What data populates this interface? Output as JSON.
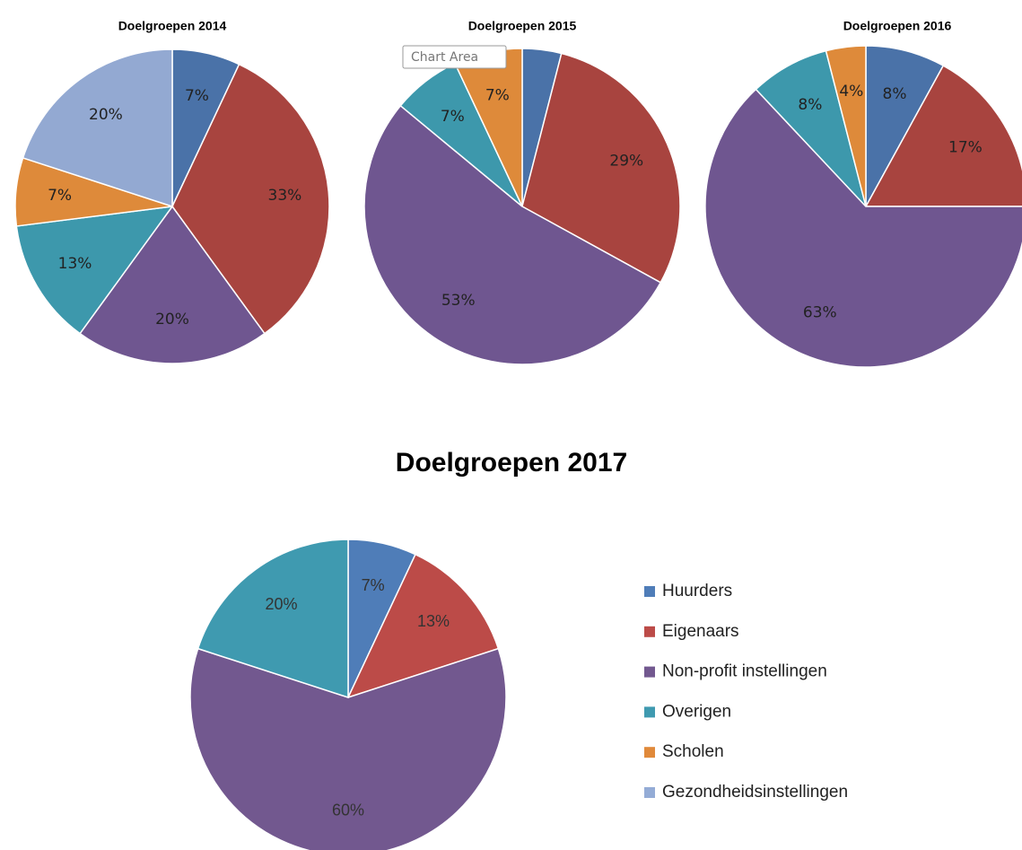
{
  "chart_data": [
    {
      "type": "pie",
      "title": "Doelgroepen 2014",
      "values": [
        7,
        33,
        20,
        13,
        7,
        20
      ],
      "value_labels": [
        "7%",
        "33%",
        "20%",
        "13%",
        "7%",
        "20%"
      ],
      "colors": [
        "#4a72a8",
        "#a8443f",
        "#6f5690",
        "#3d98ac",
        "#de8a3a",
        "#93a9d2"
      ]
    },
    {
      "type": "pie",
      "title": "Doelgroepen 2015",
      "values": [
        4,
        29,
        53,
        7,
        7
      ],
      "value_labels": [
        null,
        "29%",
        "53%",
        "7%",
        "7%"
      ],
      "colors": [
        "#4a72a8",
        "#a8443f",
        "#6f5690",
        "#3d98ac",
        "#de8a3a"
      ],
      "tooltip": "Chart Area"
    },
    {
      "type": "pie",
      "title": "Doelgroepen 2016",
      "values": [
        8,
        17,
        63,
        8,
        4
      ],
      "value_labels": [
        "8%",
        "17%",
        "63%",
        "8%",
        "4%"
      ],
      "colors": [
        "#4a72a8",
        "#a8443f",
        "#6f5690",
        "#3d98ac",
        "#de8a3a"
      ]
    },
    {
      "type": "pie",
      "title": "Doelgroepen 2017",
      "values": [
        7,
        13,
        60,
        20
      ],
      "value_labels": [
        "7%",
        "13%",
        "60%",
        "20%"
      ],
      "colors": [
        "#4f7db8",
        "#bc4b48",
        "#72588f",
        "#3f9ab0"
      ],
      "legend": {
        "position": "right",
        "entries": [
          {
            "name": "Huurders",
            "color": "#4f7db8"
          },
          {
            "name": "Eigenaars",
            "color": "#bc4b48"
          },
          {
            "name": "Non-profit instellingen",
            "color": "#72588f"
          },
          {
            "name": "Overigen",
            "color": "#3f9ab0"
          },
          {
            "name": "Scholen",
            "color": "#e0893a"
          },
          {
            "name": "Gezondheidsinstellingen",
            "color": "#94acd6"
          }
        ]
      }
    }
  ]
}
